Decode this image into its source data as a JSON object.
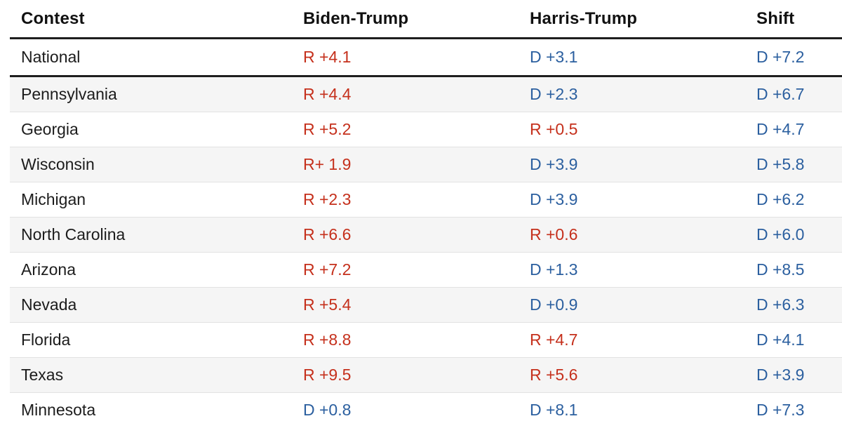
{
  "colors": {
    "republican_red": "#c5301c",
    "democrat_blue": "#2b5f9f",
    "dark_border": "#1e1e1e",
    "row_stripe": "#f5f5f5"
  },
  "chart_data": {
    "type": "table",
    "columns": [
      "Contest",
      "Biden-Trump",
      "Harris-Trump",
      "Shift"
    ],
    "rows": [
      [
        "National",
        "R +4.1",
        "D +3.1",
        "D +7.2"
      ],
      [
        "Pennsylvania",
        "R +4.4",
        "D +2.3",
        "D +6.7"
      ],
      [
        "Georgia",
        "R +5.2",
        "R +0.5",
        "D +4.7"
      ],
      [
        "Wisconsin",
        "R+ 1.9",
        "D +3.9",
        "D +5.8"
      ],
      [
        "Michigan",
        "R +2.3",
        "D +3.9",
        "D +6.2"
      ],
      [
        "North Carolina",
        "R +6.6",
        "R +0.6",
        "D +6.0"
      ],
      [
        "Arizona",
        "R +7.2",
        "D +1.3",
        "D +8.5"
      ],
      [
        "Nevada",
        "R +5.4",
        "D +0.9",
        "D +6.3"
      ],
      [
        "Florida",
        "R +8.8",
        "R +4.7",
        "D +4.1"
      ],
      [
        "Texas",
        "R +9.5",
        "R +5.6",
        "D +3.9"
      ],
      [
        "Minnesota",
        "D +0.8",
        "D +8.1",
        "D +7.3"
      ]
    ]
  }
}
